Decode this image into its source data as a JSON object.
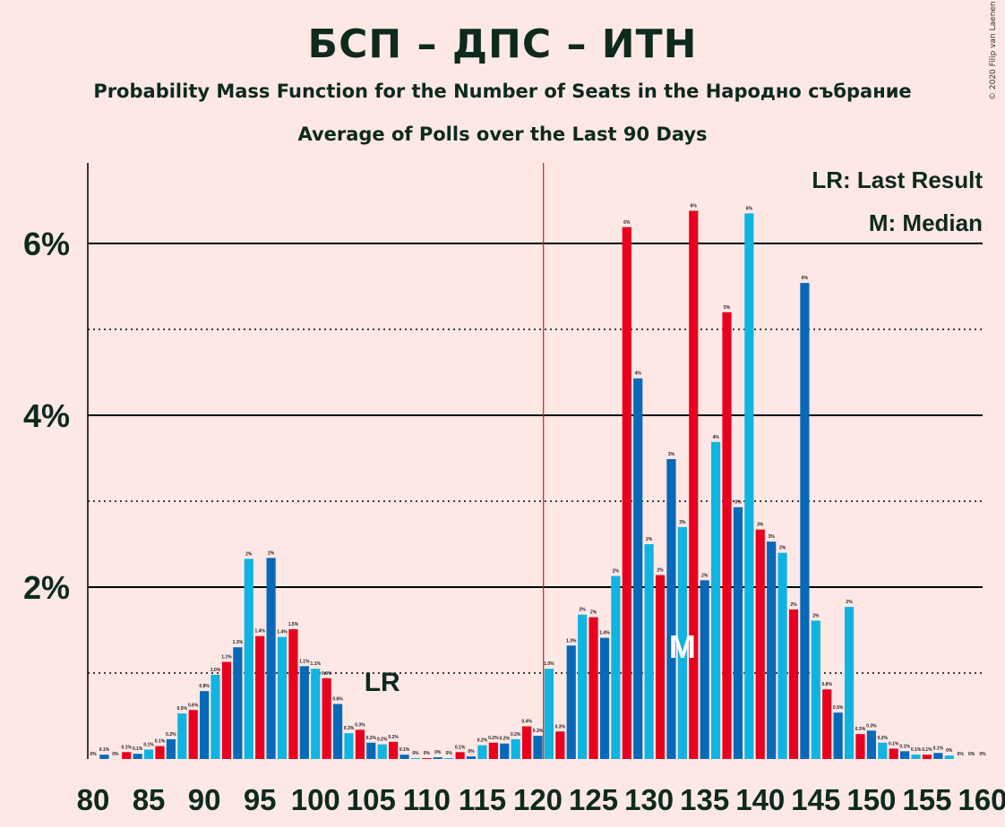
{
  "title": "БСП – ДПС – ИТН",
  "subtitle": "Probability Mass Function for the Number of Seats in the Народно събрание",
  "subtitle2": "Average of Polls over the Last 90 Days",
  "copyright": "© 2020 Filip van Laenen",
  "colors": {
    "dark_blue": "#0769B7",
    "light_blue": "#0FB4E0",
    "red": "#E8001E",
    "background": "#FDE8E6",
    "majority_line": "#CC2200"
  },
  "chart_data": {
    "type": "bar",
    "x_start": 80,
    "x_end": 160,
    "majority": 121,
    "last_result": 106,
    "median": 133,
    "ylim": [
      0,
      7
    ],
    "y_ticks": [
      2,
      4,
      6
    ],
    "y_tick_labels": [
      "2%",
      "4%",
      "6%"
    ],
    "x_ticks": [
      80,
      85,
      90,
      95,
      100,
      105,
      110,
      115,
      120,
      125,
      130,
      135,
      140,
      145,
      150,
      155,
      160
    ],
    "legend": [
      "LR: Last Result",
      "M: Median"
    ],
    "lr_label": "LR",
    "median_label": "M",
    "values": [
      0,
      0.05,
      0,
      0.08,
      0.06,
      0.11,
      0.15,
      0.23,
      0.53,
      0.57,
      0.79,
      0.98,
      1.13,
      1.3,
      2.33,
      1.43,
      2.34,
      1.42,
      1.51,
      1.08,
      1.05,
      0.94,
      0.64,
      0.3,
      0.34,
      0.19,
      0.17,
      0.2,
      0.05,
      0.01,
      0.01,
      0.02,
      0.01,
      0.08,
      0.03,
      0.16,
      0.19,
      0.18,
      0.23,
      0.38,
      0.27,
      1.05,
      0.32,
      1.32,
      1.68,
      1.65,
      1.41,
      2.13,
      6.19,
      4.43,
      2.5,
      2.14,
      3.49,
      2.7,
      6.38,
      2.08,
      3.69,
      5.2,
      2.93,
      6.35,
      2.67,
      2.53,
      2.4,
      1.74,
      5.54,
      1.61,
      0.81,
      0.54,
      1.77,
      0.29,
      0.33,
      0.19,
      0.12,
      0.09,
      0.05,
      0.05,
      0.07,
      0.04,
      0,
      0,
      0
    ],
    "labels": [
      "0%",
      "0.1%",
      "0%",
      "0.1%",
      "0.1%",
      "0.1%",
      "0.1%",
      "0.2%",
      "0.5%",
      "0.6%",
      "0.8%",
      "1.0%",
      "1.1%",
      "1.3%",
      "2%",
      "1.4%",
      "2%",
      "1.4%",
      "1.5%",
      "1.1%",
      "1.1%",
      "0.9%",
      "0.6%",
      "0.3%",
      "0.3%",
      "0.2%",
      "0.2%",
      "0.2%",
      "0.1%",
      "0%",
      "0%",
      "0%",
      "0%",
      "0.1%",
      "0%",
      "0.2%",
      "0.2%",
      "0.2%",
      "0.2%",
      "0.4%",
      "0.3%",
      "1.0%",
      "0.3%",
      "1.3%",
      "2%",
      "2%",
      "1.4%",
      "2%",
      "6%",
      "4%",
      "2%",
      "2%",
      "3%",
      "3%",
      "6%",
      "2%",
      "4%",
      "5%",
      "3%",
      "6%",
      "3%",
      "3%",
      "2%",
      "2%",
      "6%",
      "2%",
      "0.8%",
      "0.5%",
      "2%",
      "0.3%",
      "0.3%",
      "0.2%",
      "0.1%",
      "0.1%",
      "0.1%",
      "0.1%",
      "0.1%",
      "0%",
      "0%",
      "0%",
      "0%"
    ]
  }
}
